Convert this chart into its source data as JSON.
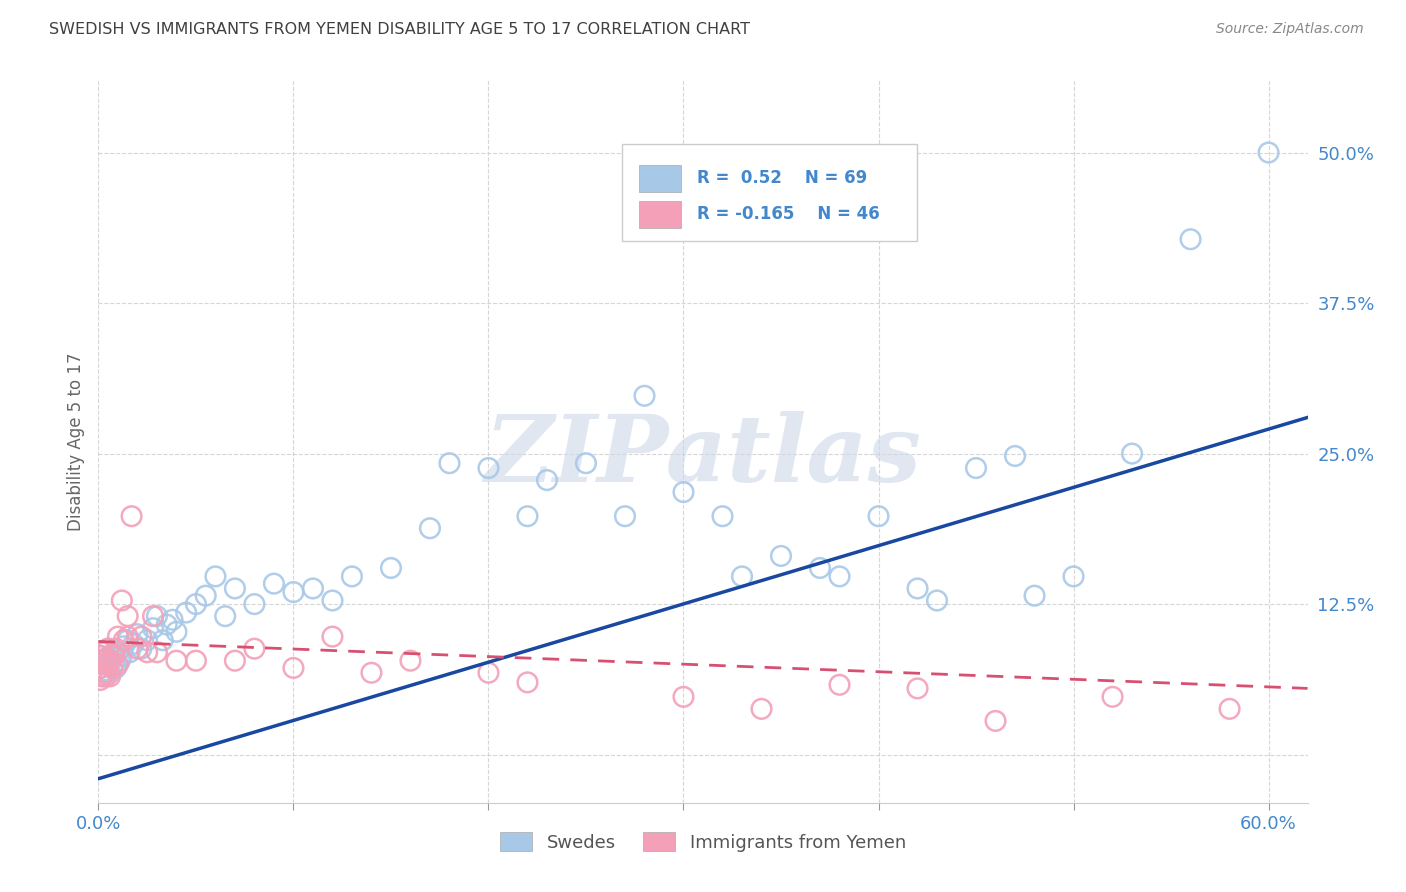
{
  "title": "SWEDISH VS IMMIGRANTS FROM YEMEN DISABILITY AGE 5 TO 17 CORRELATION CHART",
  "source": "Source: ZipAtlas.com",
  "ylabel": "Disability Age 5 to 17",
  "xlim": [
    0.0,
    0.62
  ],
  "ylim": [
    -0.04,
    0.56
  ],
  "R_swedish": 0.52,
  "N_swedish": 69,
  "R_yemen": -0.165,
  "N_yemen": 46,
  "swedish_color": "#a8c8e8",
  "yemen_color": "#f4a0b8",
  "trendline_swedish_color": "#1848a0",
  "trendline_yemen_color": "#d85070",
  "watermark_color": "#ccd8e8",
  "background_color": "#ffffff",
  "grid_color": "#cccccc",
  "title_color": "#404040",
  "axis_label_color": "#4488cc",
  "sw_trend_x0": 0.0,
  "sw_trend_y0": -0.02,
  "sw_trend_x1": 0.62,
  "sw_trend_y1": 0.28,
  "ye_trend_x0": 0.0,
  "ye_trend_y0": 0.094,
  "ye_trend_x1": 0.62,
  "ye_trend_y1": 0.055
}
